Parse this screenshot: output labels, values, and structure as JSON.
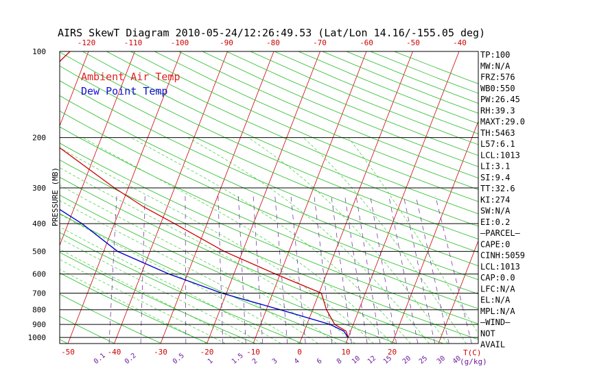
{
  "chart_data": {
    "type": "line",
    "title": "AIRS SkewT Diagram 2010-05-24/12:26:49.53 (Lat/Lon 14.16/-155.05 deg)",
    "ylabel": "PRESSURE (MB)",
    "y_scale": "log",
    "ylim": [
      1050,
      100
    ],
    "pressure_ticks": [
      100,
      200,
      300,
      400,
      500,
      600,
      700,
      800,
      900,
      1000
    ],
    "bottom_temp_ticks": [
      -50,
      -40,
      -30,
      -20,
      -10,
      0,
      10,
      20
    ],
    "top_temp_ticks": [
      -120,
      -110,
      -100,
      -90,
      -80,
      -70,
      -60,
      -50,
      -40
    ],
    "temp_axis_label": "T(C)",
    "mixing_ratio_labels": [
      "0.1",
      "0.2",
      "0.5",
      "1",
      "1.5",
      "2",
      "3",
      "4",
      "6",
      "8",
      "10",
      "12",
      "15",
      "20",
      "25",
      "30",
      "40"
    ],
    "mixing_ratio_unit": "(g/kg)",
    "legend": [
      {
        "label": "Ambient Air Temp",
        "color": "#e02020"
      },
      {
        "label": "Dew Point Temp",
        "color": "#1010d0"
      }
    ],
    "series": [
      {
        "name": "Ambient Air Temp",
        "color": "#cc0000",
        "points": [
          [
            100,
            -74
          ],
          [
            160,
            -82
          ],
          [
            200,
            -72
          ],
          [
            300,
            -53
          ],
          [
            350,
            -45
          ],
          [
            400,
            -37
          ],
          [
            500,
            -24
          ],
          [
            600,
            -11
          ],
          [
            700,
            0.5
          ],
          [
            800,
            3
          ],
          [
            900,
            6
          ],
          [
            950,
            9
          ],
          [
            1000,
            10
          ]
        ]
      },
      {
        "name": "Dew Point Temp",
        "color": "#0000cc",
        "points": [
          [
            100,
            -82
          ],
          [
            160,
            -86
          ],
          [
            200,
            -77
          ],
          [
            230,
            -75
          ],
          [
            250,
            -72
          ],
          [
            300,
            -69
          ],
          [
            350,
            -64
          ],
          [
            400,
            -57
          ],
          [
            500,
            -47
          ],
          [
            600,
            -34
          ],
          [
            700,
            -21
          ],
          [
            800,
            -7
          ],
          [
            900,
            5
          ],
          [
            950,
            8.5
          ],
          [
            1000,
            10
          ]
        ]
      }
    ],
    "indices": [
      "TP:100",
      "MW:N/A",
      "FRZ:576",
      "WB0:550",
      "PW:26.45",
      "RH:39.3",
      "MAXT:29.0",
      "TH:5463",
      "L57:6.1",
      "LCL:1013",
      "LI:3.1",
      "SI:9.4",
      "TT:32.6",
      "KI:274",
      "SW:N/A",
      "EI:0.2",
      "—PARCEL—",
      "CAPE:0",
      "CINH:5059",
      "LCL:1013",
      "CAP:0.0",
      "LFC:N/A",
      "EL:N/A",
      "MPL:N/A",
      "—WIND—",
      "NOT",
      "AVAIL"
    ]
  }
}
